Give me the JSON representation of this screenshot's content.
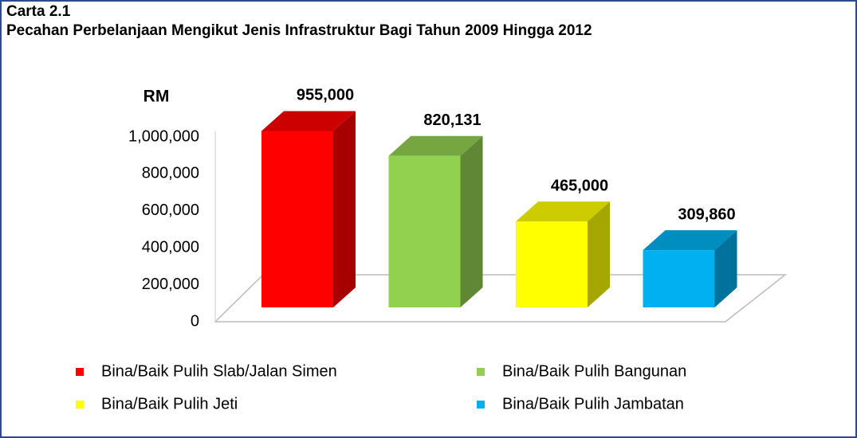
{
  "chart_data": {
    "type": "bar3d",
    "title": "Carta 2.1",
    "subtitle": "Pecahan Perbelanjaan Mengikut Jenis Infrastruktur Bagi Tahun 2009 Hingga 2012",
    "y_label": "RM",
    "categories": [
      "Bina/Baik Pulih Slab/Jalan Simen",
      "Bina/Baik Pulih Bangunan",
      "Bina/Baik Pulih Jeti",
      "Bina/Baik Pulih Jambatan"
    ],
    "values": [
      955000,
      820131,
      465000,
      309860
    ],
    "value_labels": [
      "955,000",
      "820,131",
      "465,000",
      "309,860"
    ],
    "colors": [
      "#ff0000",
      "#92d050",
      "#ffff00",
      "#00b0f0"
    ],
    "ylim": [
      0,
      1000000
    ],
    "yticks": [
      0,
      {
        "value": 200000,
        "label": "200,000"
      },
      {
        "value": 400000,
        "label": "400,000"
      },
      {
        "value": 600000,
        "label": "600,000"
      },
      {
        "value": 800000,
        "label": "800,000"
      },
      {
        "value": 1000000,
        "label": "1,000,000"
      }
    ],
    "legend": "bottom"
  }
}
